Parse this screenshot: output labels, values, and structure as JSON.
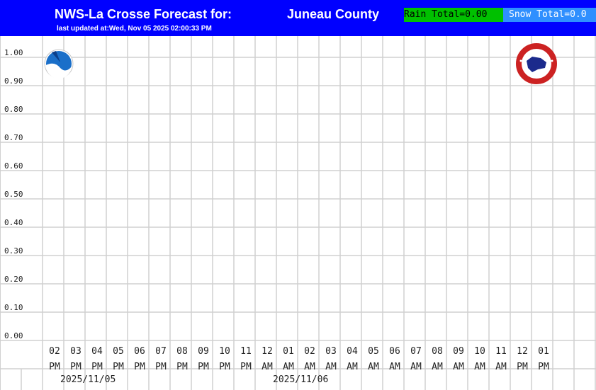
{
  "header": {
    "title": "NWS-La Crosse Forecast for:",
    "county": "Juneau County",
    "updated": "last updated at:Wed, Nov 05 2025 02:00:33 PM",
    "rain_total": "Rain Total=0.00",
    "snow_total": "Snow Total=0.0"
  },
  "colors": {
    "header_bg": "#0000ff",
    "rain_bg": "#00c000",
    "snow_bg": "#2f8fff",
    "grid": "#d0d0d0"
  },
  "logos": [
    "noaa-logo",
    "nws-logo"
  ],
  "chart_data": {
    "type": "bar",
    "ylim": [
      0,
      1.0
    ],
    "yticks": [
      "1.00",
      "0.90",
      "0.80",
      "0.70",
      "0.60",
      "0.50",
      "0.40",
      "0.30",
      "0.20",
      "0.10",
      "0.00"
    ],
    "categories": [
      [
        "02",
        "PM"
      ],
      [
        "03",
        "PM"
      ],
      [
        "04",
        "PM"
      ],
      [
        "05",
        "PM"
      ],
      [
        "06",
        "PM"
      ],
      [
        "07",
        "PM"
      ],
      [
        "08",
        "PM"
      ],
      [
        "09",
        "PM"
      ],
      [
        "10",
        "PM"
      ],
      [
        "11",
        "PM"
      ],
      [
        "12",
        "AM"
      ],
      [
        "01",
        "AM"
      ],
      [
        "02",
        "AM"
      ],
      [
        "03",
        "AM"
      ],
      [
        "04",
        "AM"
      ],
      [
        "05",
        "AM"
      ],
      [
        "06",
        "AM"
      ],
      [
        "07",
        "AM"
      ],
      [
        "08",
        "AM"
      ],
      [
        "09",
        "AM"
      ],
      [
        "10",
        "AM"
      ],
      [
        "11",
        "AM"
      ],
      [
        "12",
        "PM"
      ],
      [
        "01",
        "PM"
      ]
    ],
    "dates": [
      {
        "label": "2025/11/05",
        "start_index": 0
      },
      {
        "label": "2025/11/06",
        "start_index": 10
      }
    ],
    "values": [
      0,
      0,
      0,
      0,
      0,
      0,
      0,
      0,
      0,
      0,
      0,
      0,
      0,
      0,
      0,
      0,
      0,
      0,
      0,
      0,
      0,
      0,
      0,
      0
    ],
    "grid": true
  }
}
